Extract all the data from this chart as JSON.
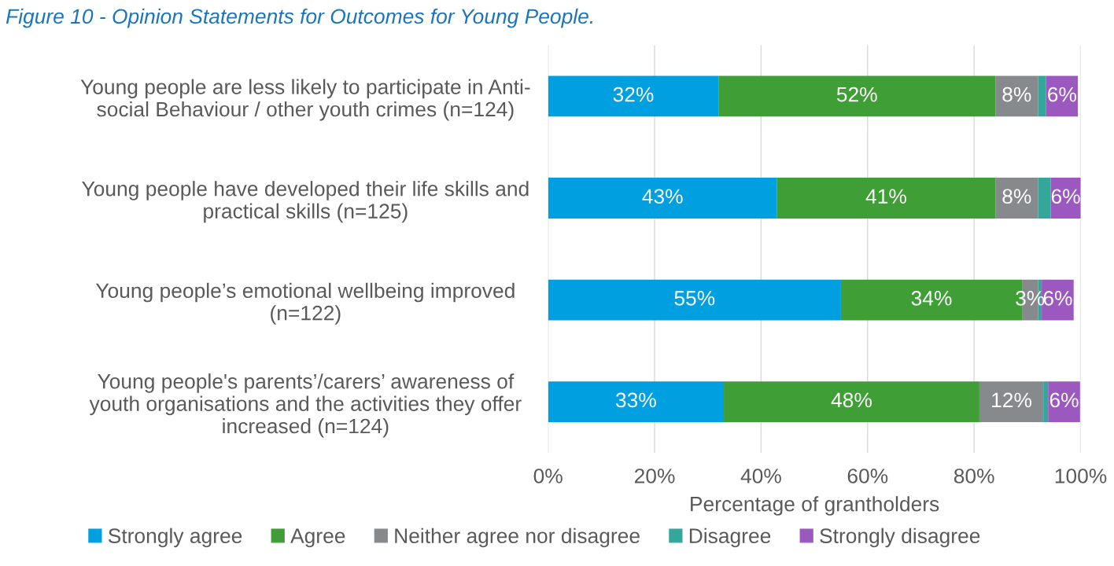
{
  "chart_data": {
    "type": "bar",
    "orientation": "horizontal",
    "stacked": true,
    "title": "Figure 10 - Opinion Statements for Outcomes for Young People.",
    "categories": [
      "Young people are less likely to participate in Anti-\nsocial Behaviour / other youth crimes (n=124)",
      "Young people have developed their life skills and\npractical skills (n=125)",
      "Young people’s emotional wellbeing improved\n(n=122)",
      "Young people's parents’/carers’ awareness of\nyouth organisations and the activities they offer\nincreased (n=124)"
    ],
    "series": [
      {
        "name": "Strongly agree",
        "color": "#009fe0",
        "values": [
          32,
          43,
          55,
          33
        ],
        "value_labels": [
          "32%",
          "43%",
          "55%",
          "33%"
        ]
      },
      {
        "name": "Agree",
        "color": "#3f9e35",
        "values": [
          52,
          41,
          34,
          48
        ],
        "value_labels": [
          "52%",
          "41%",
          "34%",
          "48%"
        ]
      },
      {
        "name": "Neither agree nor disagree",
        "color": "#878a8c",
        "values": [
          8,
          8,
          3,
          12
        ],
        "value_labels": [
          "8%",
          "8%",
          "3%",
          "12%"
        ]
      },
      {
        "name": "Disagree",
        "color": "#35a79a",
        "values": [
          1.5,
          2.4,
          0.7,
          0.9
        ],
        "value_labels": [
          null,
          null,
          null,
          null
        ]
      },
      {
        "name": "Strongly disagree",
        "color": "#9b59c0",
        "values": [
          6,
          6,
          6,
          6
        ],
        "value_labels": [
          "6%",
          "6%",
          "6%",
          "6%"
        ]
      }
    ],
    "xlim": [
      0,
      100
    ],
    "xticks": [
      {
        "value": 0,
        "label": "0%"
      },
      {
        "value": 20,
        "label": "20%"
      },
      {
        "value": 40,
        "label": "40%"
      },
      {
        "value": 60,
        "label": "60%"
      },
      {
        "value": 80,
        "label": "80%"
      },
      {
        "value": 100,
        "label": "100%"
      }
    ],
    "xlabel": "Percentage of grantholders",
    "grid": "x",
    "legend": "bottom"
  }
}
